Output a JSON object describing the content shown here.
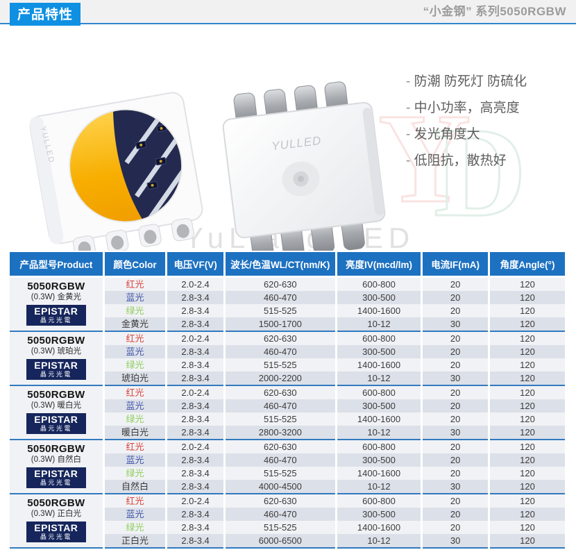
{
  "header": {
    "badge": "产品特性",
    "series": "“小金钢” 系列5050RGBW"
  },
  "hero": {
    "led_brand": "YULLED",
    "watermark": "YuLiang  LED",
    "initials": [
      "Y",
      "D"
    ]
  },
  "features": {
    "items": [
      "防潮 防死灯 防硫化",
      "中小功率，高亮度",
      "发光角度大",
      "低阻抗，散热好"
    ]
  },
  "table": {
    "columns": [
      "产品型号Product",
      "颜色Color",
      "电压VF(V)",
      "波长/色温WL/CT(nm/K)",
      "亮度IV(mcd/lm)",
      "电流IF(mA)",
      "角度Angle(°)"
    ],
    "groups": [
      {
        "model": "5050RGBW",
        "subtitle": "(0.3W) 金黄光",
        "brand": "EPISTAR",
        "brand_sub": "晶元光電",
        "rows": [
          {
            "color": "红光",
            "color_class": "red",
            "vf": "2.0-2.4",
            "wl_ct": "620-630",
            "iv": "600-800",
            "if_ma": "20",
            "angle": "120"
          },
          {
            "color": "蓝光",
            "color_class": "blue",
            "vf": "2.8-3.4",
            "wl_ct": "460-470",
            "iv": "300-500",
            "if_ma": "20",
            "angle": "120"
          },
          {
            "color": "绿光",
            "color_class": "green",
            "vf": "2.8-3.4",
            "wl_ct": "515-525",
            "iv": "1400-1600",
            "if_ma": "20",
            "angle": "120"
          },
          {
            "color": "金黄光",
            "color_class": "plain",
            "vf": "2.8-3.4",
            "wl_ct": "1500-1700",
            "iv": "10-12",
            "if_ma": "30",
            "angle": "120"
          }
        ]
      },
      {
        "model": "5050RGBW",
        "subtitle": "(0.3W) 琥珀光",
        "brand": "EPISTAR",
        "brand_sub": "晶元光電",
        "rows": [
          {
            "color": "红光",
            "color_class": "red",
            "vf": "2.0-2.4",
            "wl_ct": "620-630",
            "iv": "600-800",
            "if_ma": "20",
            "angle": "120"
          },
          {
            "color": "蓝光",
            "color_class": "blue",
            "vf": "2.8-3.4",
            "wl_ct": "460-470",
            "iv": "300-500",
            "if_ma": "20",
            "angle": "120"
          },
          {
            "color": "绿光",
            "color_class": "green",
            "vf": "2.8-3.4",
            "wl_ct": "515-525",
            "iv": "1400-1600",
            "if_ma": "20",
            "angle": "120"
          },
          {
            "color": "琥珀光",
            "color_class": "plain",
            "vf": "2.8-3.4",
            "wl_ct": "2000-2200",
            "iv": "10-12",
            "if_ma": "30",
            "angle": "120"
          }
        ]
      },
      {
        "model": "5050RGBW",
        "subtitle": "(0.3W) 暖白光",
        "brand": "EPISTAR",
        "brand_sub": "晶元光電",
        "rows": [
          {
            "color": "红光",
            "color_class": "red",
            "vf": "2.0-2.4",
            "wl_ct": "620-630",
            "iv": "600-800",
            "if_ma": "20",
            "angle": "120"
          },
          {
            "color": "蓝光",
            "color_class": "blue",
            "vf": "2.8-3.4",
            "wl_ct": "460-470",
            "iv": "300-500",
            "if_ma": "20",
            "angle": "120"
          },
          {
            "color": "绿光",
            "color_class": "green",
            "vf": "2.8-3.4",
            "wl_ct": "515-525",
            "iv": "1400-1600",
            "if_ma": "20",
            "angle": "120"
          },
          {
            "color": "暖白光",
            "color_class": "plain",
            "vf": "2.8-3.4",
            "wl_ct": "2800-3200",
            "iv": "10-12",
            "if_ma": "30",
            "angle": "120"
          }
        ]
      },
      {
        "model": "5050RGBW",
        "subtitle": "(0.3W) 自然白",
        "brand": "EPISTAR",
        "brand_sub": "晶元光電",
        "rows": [
          {
            "color": "红光",
            "color_class": "red",
            "vf": "2.0-2.4",
            "wl_ct": "620-630",
            "iv": "600-800",
            "if_ma": "20",
            "angle": "120"
          },
          {
            "color": "蓝光",
            "color_class": "blue",
            "vf": "2.8-3.4",
            "wl_ct": "460-470",
            "iv": "300-500",
            "if_ma": "20",
            "angle": "120"
          },
          {
            "color": "绿光",
            "color_class": "green",
            "vf": "2.8-3.4",
            "wl_ct": "515-525",
            "iv": "1400-1600",
            "if_ma": "20",
            "angle": "120"
          },
          {
            "color": "自然白",
            "color_class": "plain",
            "vf": "2.8-3.4",
            "wl_ct": "4000-4500",
            "iv": "10-12",
            "if_ma": "30",
            "angle": "120"
          }
        ]
      },
      {
        "model": "5050RGBW",
        "subtitle": "(0.3W) 正白光",
        "brand": "EPISTAR",
        "brand_sub": "晶元光電",
        "rows": [
          {
            "color": "红光",
            "color_class": "red",
            "vf": "2.0-2.4",
            "wl_ct": "620-630",
            "iv": "600-800",
            "if_ma": "20",
            "angle": "120"
          },
          {
            "color": "蓝光",
            "color_class": "blue",
            "vf": "2.8-3.4",
            "wl_ct": "460-470",
            "iv": "300-500",
            "if_ma": "20",
            "angle": "120"
          },
          {
            "color": "绿光",
            "color_class": "green",
            "vf": "2.8-3.4",
            "wl_ct": "515-525",
            "iv": "1400-1600",
            "if_ma": "20",
            "angle": "120"
          },
          {
            "color": "正白光",
            "color_class": "plain",
            "vf": "2.8-3.4",
            "wl_ct": "6000-6500",
            "iv": "10-12",
            "if_ma": "30",
            "angle": "120"
          }
        ]
      }
    ]
  },
  "colors": {
    "badge_blue": "#0f90e2",
    "table_header_blue": "#1d71c1",
    "divider_blue": "#3079c0",
    "row_light": "#f1f2f5",
    "row_dark": "#dce0e8",
    "red_text": "#d9433c",
    "blue_text": "#4156ab",
    "green_text": "#8fce5e",
    "epistar_navy": "#16265c"
  }
}
